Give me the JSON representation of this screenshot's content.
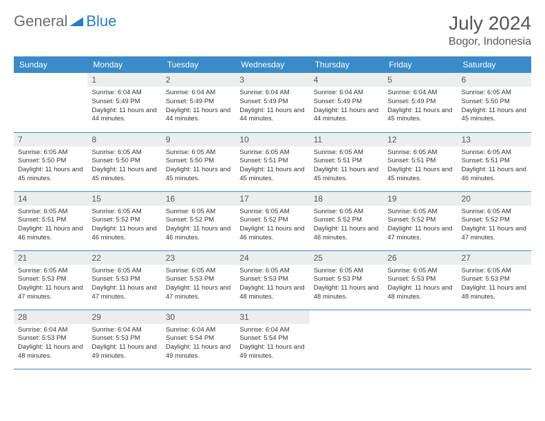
{
  "brand": {
    "part1": "General",
    "part2": "Blue"
  },
  "title": "July 2024",
  "location": "Bogor, Indonesia",
  "colors": {
    "header_bg": "#3b8bc9",
    "header_text": "#ffffff",
    "daynum_bg": "#eceded",
    "border": "#3b8bc9",
    "brand_gray": "#6b6b6b",
    "brand_blue": "#2b7bbd"
  },
  "day_headers": [
    "Sunday",
    "Monday",
    "Tuesday",
    "Wednesday",
    "Thursday",
    "Friday",
    "Saturday"
  ],
  "weeks": [
    [
      {
        "n": "",
        "sunrise": "",
        "sunset": "",
        "daylight": ""
      },
      {
        "n": "1",
        "sunrise": "Sunrise: 6:04 AM",
        "sunset": "Sunset: 5:49 PM",
        "daylight": "Daylight: 11 hours and 44 minutes."
      },
      {
        "n": "2",
        "sunrise": "Sunrise: 6:04 AM",
        "sunset": "Sunset: 5:49 PM",
        "daylight": "Daylight: 11 hours and 44 minutes."
      },
      {
        "n": "3",
        "sunrise": "Sunrise: 6:04 AM",
        "sunset": "Sunset: 5:49 PM",
        "daylight": "Daylight: 11 hours and 44 minutes."
      },
      {
        "n": "4",
        "sunrise": "Sunrise: 6:04 AM",
        "sunset": "Sunset: 5:49 PM",
        "daylight": "Daylight: 11 hours and 44 minutes."
      },
      {
        "n": "5",
        "sunrise": "Sunrise: 6:04 AM",
        "sunset": "Sunset: 5:49 PM",
        "daylight": "Daylight: 11 hours and 45 minutes."
      },
      {
        "n": "6",
        "sunrise": "Sunrise: 6:05 AM",
        "sunset": "Sunset: 5:50 PM",
        "daylight": "Daylight: 11 hours and 45 minutes."
      }
    ],
    [
      {
        "n": "7",
        "sunrise": "Sunrise: 6:05 AM",
        "sunset": "Sunset: 5:50 PM",
        "daylight": "Daylight: 11 hours and 45 minutes."
      },
      {
        "n": "8",
        "sunrise": "Sunrise: 6:05 AM",
        "sunset": "Sunset: 5:50 PM",
        "daylight": "Daylight: 11 hours and 45 minutes."
      },
      {
        "n": "9",
        "sunrise": "Sunrise: 6:05 AM",
        "sunset": "Sunset: 5:50 PM",
        "daylight": "Daylight: 11 hours and 45 minutes."
      },
      {
        "n": "10",
        "sunrise": "Sunrise: 6:05 AM",
        "sunset": "Sunset: 5:51 PM",
        "daylight": "Daylight: 11 hours and 45 minutes."
      },
      {
        "n": "11",
        "sunrise": "Sunrise: 6:05 AM",
        "sunset": "Sunset: 5:51 PM",
        "daylight": "Daylight: 11 hours and 45 minutes."
      },
      {
        "n": "12",
        "sunrise": "Sunrise: 6:05 AM",
        "sunset": "Sunset: 5:51 PM",
        "daylight": "Daylight: 11 hours and 45 minutes."
      },
      {
        "n": "13",
        "sunrise": "Sunrise: 6:05 AM",
        "sunset": "Sunset: 5:51 PM",
        "daylight": "Daylight: 11 hours and 46 minutes."
      }
    ],
    [
      {
        "n": "14",
        "sunrise": "Sunrise: 6:05 AM",
        "sunset": "Sunset: 5:51 PM",
        "daylight": "Daylight: 11 hours and 46 minutes."
      },
      {
        "n": "15",
        "sunrise": "Sunrise: 6:05 AM",
        "sunset": "Sunset: 5:52 PM",
        "daylight": "Daylight: 11 hours and 46 minutes."
      },
      {
        "n": "16",
        "sunrise": "Sunrise: 6:05 AM",
        "sunset": "Sunset: 5:52 PM",
        "daylight": "Daylight: 11 hours and 46 minutes."
      },
      {
        "n": "17",
        "sunrise": "Sunrise: 6:05 AM",
        "sunset": "Sunset: 5:52 PM",
        "daylight": "Daylight: 11 hours and 46 minutes."
      },
      {
        "n": "18",
        "sunrise": "Sunrise: 6:05 AM",
        "sunset": "Sunset: 5:52 PM",
        "daylight": "Daylight: 11 hours and 46 minutes."
      },
      {
        "n": "19",
        "sunrise": "Sunrise: 6:05 AM",
        "sunset": "Sunset: 5:52 PM",
        "daylight": "Daylight: 11 hours and 47 minutes."
      },
      {
        "n": "20",
        "sunrise": "Sunrise: 6:05 AM",
        "sunset": "Sunset: 5:52 PM",
        "daylight": "Daylight: 11 hours and 47 minutes."
      }
    ],
    [
      {
        "n": "21",
        "sunrise": "Sunrise: 6:05 AM",
        "sunset": "Sunset: 5:53 PM",
        "daylight": "Daylight: 11 hours and 47 minutes."
      },
      {
        "n": "22",
        "sunrise": "Sunrise: 6:05 AM",
        "sunset": "Sunset: 5:53 PM",
        "daylight": "Daylight: 11 hours and 47 minutes."
      },
      {
        "n": "23",
        "sunrise": "Sunrise: 6:05 AM",
        "sunset": "Sunset: 5:53 PM",
        "daylight": "Daylight: 11 hours and 47 minutes."
      },
      {
        "n": "24",
        "sunrise": "Sunrise: 6:05 AM",
        "sunset": "Sunset: 5:53 PM",
        "daylight": "Daylight: 11 hours and 48 minutes."
      },
      {
        "n": "25",
        "sunrise": "Sunrise: 6:05 AM",
        "sunset": "Sunset: 5:53 PM",
        "daylight": "Daylight: 11 hours and 48 minutes."
      },
      {
        "n": "26",
        "sunrise": "Sunrise: 6:05 AM",
        "sunset": "Sunset: 5:53 PM",
        "daylight": "Daylight: 11 hours and 48 minutes."
      },
      {
        "n": "27",
        "sunrise": "Sunrise: 6:05 AM",
        "sunset": "Sunset: 5:53 PM",
        "daylight": "Daylight: 11 hours and 48 minutes."
      }
    ],
    [
      {
        "n": "28",
        "sunrise": "Sunrise: 6:04 AM",
        "sunset": "Sunset: 5:53 PM",
        "daylight": "Daylight: 11 hours and 48 minutes."
      },
      {
        "n": "29",
        "sunrise": "Sunrise: 6:04 AM",
        "sunset": "Sunset: 5:53 PM",
        "daylight": "Daylight: 11 hours and 49 minutes."
      },
      {
        "n": "30",
        "sunrise": "Sunrise: 6:04 AM",
        "sunset": "Sunset: 5:54 PM",
        "daylight": "Daylight: 11 hours and 49 minutes."
      },
      {
        "n": "31",
        "sunrise": "Sunrise: 6:04 AM",
        "sunset": "Sunset: 5:54 PM",
        "daylight": "Daylight: 11 hours and 49 minutes."
      },
      {
        "n": "",
        "sunrise": "",
        "sunset": "",
        "daylight": ""
      },
      {
        "n": "",
        "sunrise": "",
        "sunset": "",
        "daylight": ""
      },
      {
        "n": "",
        "sunrise": "",
        "sunset": "",
        "daylight": ""
      }
    ]
  ]
}
